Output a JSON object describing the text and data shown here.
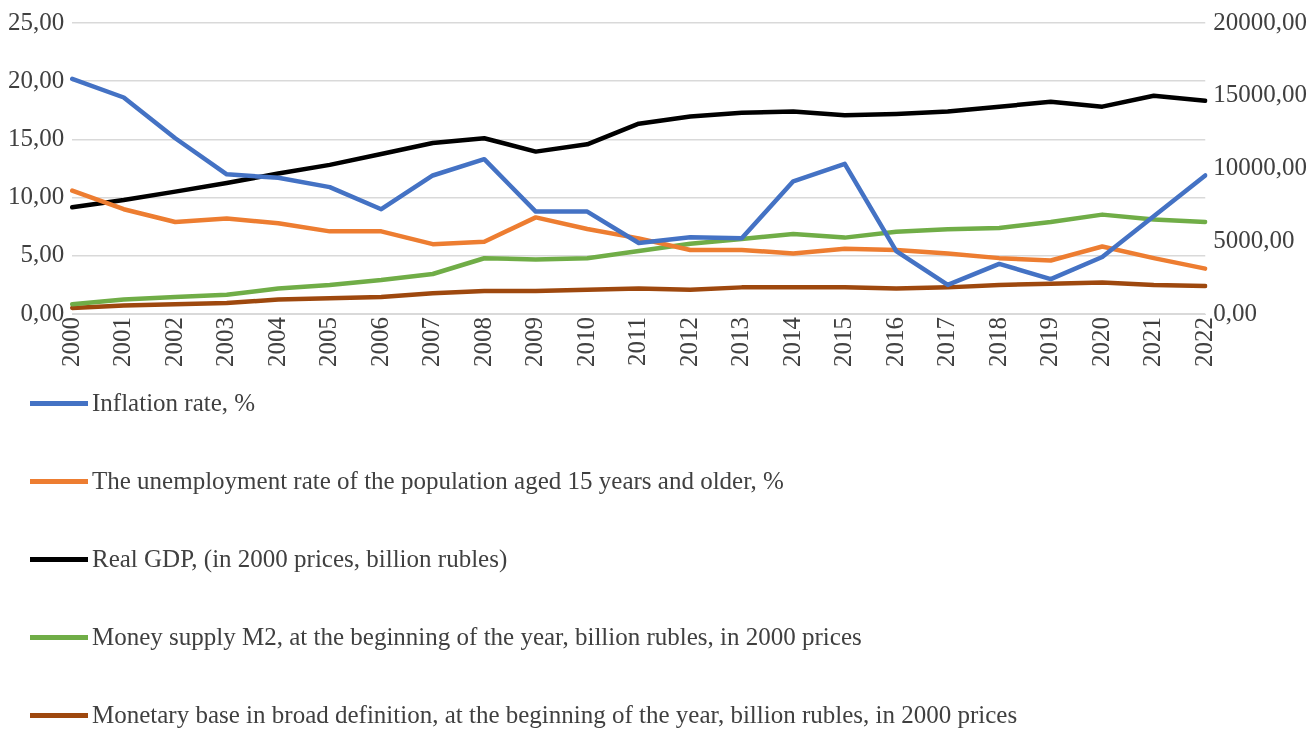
{
  "chart_data": {
    "type": "line",
    "categories": [
      "2000",
      "2001",
      "2002",
      "2003",
      "2004",
      "2005",
      "2006",
      "2007",
      "2008",
      "2009",
      "2010",
      "2011",
      "2012",
      "2013",
      "2014",
      "2015",
      "2016",
      "2017",
      "2018",
      "2019",
      "2020",
      "2021",
      "2022"
    ],
    "series": [
      {
        "name": "Inflation rate, %",
        "color": "#4472c4",
        "values": [
          20.2,
          18.6,
          15.1,
          12.0,
          11.7,
          10.9,
          9.0,
          11.9,
          13.3,
          8.8,
          8.8,
          6.1,
          6.6,
          6.5,
          11.4,
          12.9,
          5.4,
          2.5,
          4.3,
          3.0,
          4.9,
          8.4,
          11.9
        ]
      },
      {
        "name": "The unemployment rate of the population aged 15 years and older, %",
        "color": "#ed7d31",
        "values": [
          10.6,
          9.0,
          7.9,
          8.2,
          7.8,
          7.1,
          7.1,
          6.0,
          6.2,
          8.3,
          7.3,
          6.5,
          5.5,
          5.5,
          5.2,
          5.6,
          5.5,
          5.2,
          4.8,
          4.6,
          5.8,
          4.8,
          3.9
        ]
      },
      {
        "name": "Real GDP, (in 2000 prices, billion rubles)",
        "color": "#000000",
        "axis": "y2",
        "values": [
          7330,
          7830,
          8410,
          9000,
          9660,
          10250,
          11000,
          11750,
          12080,
          11160,
          11660,
          13080,
          13580,
          13830,
          13910,
          13660,
          13750,
          13910,
          14250,
          14580,
          14250,
          15000,
          14660
        ]
      },
      {
        "name": "Money supply M2, at the beginning of the year, billion rubles, in 2000 prices",
        "color": "#70ad47",
        "axis": "y2",
        "values": [
          670,
          1000,
          1170,
          1330,
          1750,
          2000,
          2330,
          2750,
          3830,
          3750,
          3830,
          4330,
          4830,
          5160,
          5500,
          5250,
          5660,
          5830,
          5910,
          6330,
          6830,
          6500,
          6330
        ]
      },
      {
        "name": "Monetary base in broad definition, at the beginning of the year, billion rubles, in 2000 prices",
        "color": "#9e480e",
        "axis": "y2",
        "values": [
          420,
          580,
          670,
          750,
          1000,
          1080,
          1170,
          1420,
          1580,
          1580,
          1670,
          1750,
          1670,
          1830,
          1830,
          1830,
          1750,
          1830,
          2000,
          2080,
          2170,
          2000,
          1920
        ]
      }
    ],
    "ylim": [
      0,
      25
    ],
    "yticks": [
      {
        "value": 0,
        "label": "0,00"
      },
      {
        "value": 5,
        "label": "5,00"
      },
      {
        "value": 10,
        "label": "10,00"
      },
      {
        "value": 15,
        "label": "15,00"
      },
      {
        "value": 20,
        "label": "20,00"
      },
      {
        "value": 25,
        "label": "25,00"
      }
    ],
    "y2lim": [
      0,
      20000
    ],
    "y2ticks": [
      {
        "value": 0,
        "label": "0,00"
      },
      {
        "value": 5000,
        "label": "5000,00"
      },
      {
        "value": 10000,
        "label": "10000,00"
      },
      {
        "value": 15000,
        "label": "15000,00"
      },
      {
        "value": 20000,
        "label": "20000,00"
      }
    ],
    "grid": "y",
    "legend": "bottom",
    "marker": "none",
    "line_style": "solid"
  }
}
